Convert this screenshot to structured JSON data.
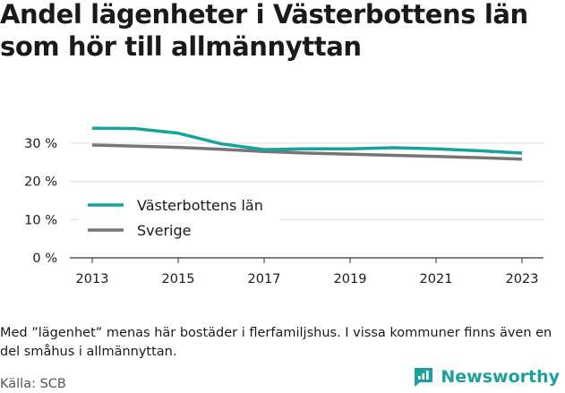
{
  "title": "Andel lägenheter i Västerbottens län som hör till allmännyttan",
  "note": "Med ”lägenhet” menas här bostäder i flerfamiljshus. I vissa kommuner finns även en del småhus i allmännyttan.",
  "source": "Källa: SCB",
  "brand": "Newsworthy",
  "colors": {
    "vasterbotten": "#16a39b",
    "sverige": "#767579",
    "grid": "#dddddd",
    "axis": "#333333",
    "brand": "#1ea09a"
  },
  "chart_data": {
    "type": "line",
    "x": [
      2013,
      2014,
      2015,
      2016,
      2017,
      2018,
      2019,
      2020,
      2021,
      2022,
      2023
    ],
    "xticks": [
      "2013",
      "2015",
      "2017",
      "2019",
      "2021",
      "2023"
    ],
    "yticks": [
      "0 %",
      "10 %",
      "20 %",
      "30 %"
    ],
    "ylim": [
      0,
      35
    ],
    "xlim": [
      2013,
      2023
    ],
    "legend_position": "left",
    "series": [
      {
        "name": "Västerbottens län",
        "values": [
          33.9,
          33.8,
          32.6,
          29.8,
          28.3,
          28.5,
          28.5,
          28.8,
          28.5,
          28.0,
          27.4
        ]
      },
      {
        "name": "Sverige",
        "values": [
          29.5,
          29.2,
          28.9,
          28.4,
          27.8,
          27.4,
          27.1,
          26.8,
          26.5,
          26.2,
          25.8
        ]
      }
    ]
  }
}
